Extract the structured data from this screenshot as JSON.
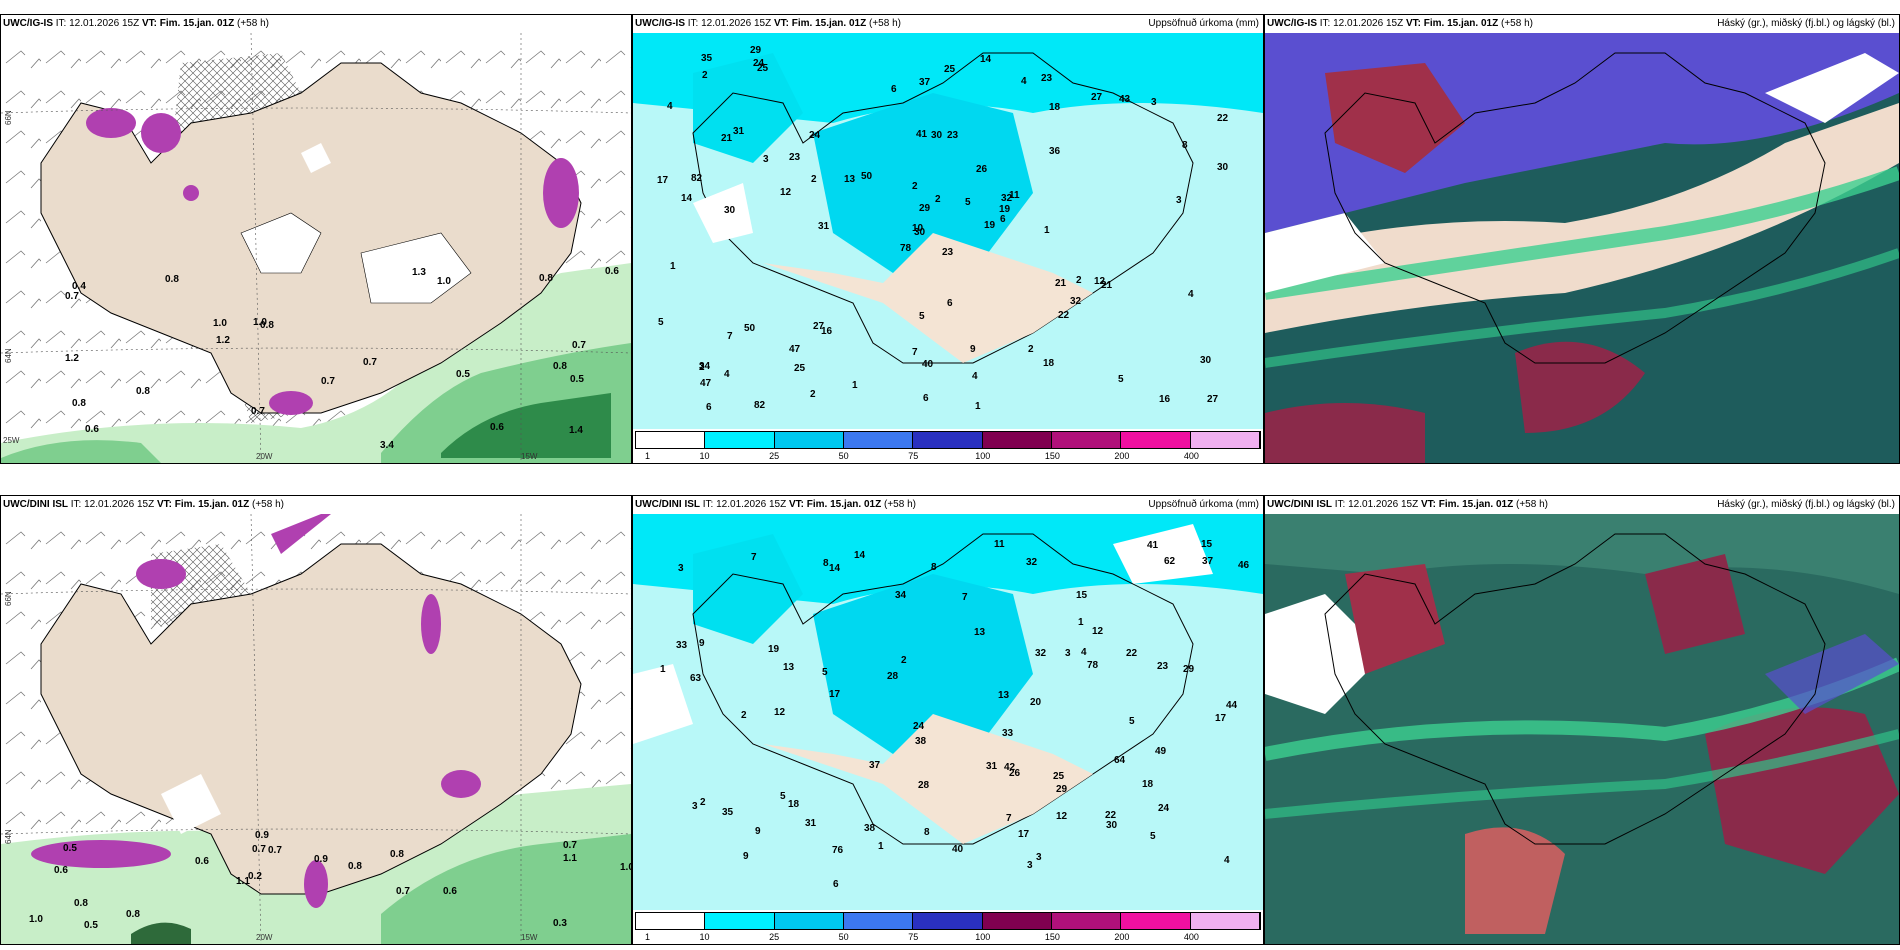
{
  "panels": {
    "top_left": {
      "model": "UWC/IG-IS",
      "it": " IT: 12.01.2026 15Z ",
      "vt_label": "VT:",
      "vt": " Fim. 15.jan. 01Z",
      "lead": " (+58 h)",
      "right": ""
    },
    "top_mid": {
      "model": "UWC/IG-IS",
      "it": " IT: 12.01.2026 15Z ",
      "vt_label": "VT:",
      "vt": " Fim. 15.jan. 01Z",
      "lead": " (+58 h)",
      "right": "Uppsöfnuð úrkoma (mm)"
    },
    "top_right": {
      "model": "UWC/IG-IS",
      "it": " IT: 12.01.2026 15Z ",
      "vt_label": "VT:",
      "vt": " Fim. 15.jan. 01Z",
      "lead": " (+58 h)",
      "right": "Háský (gr.), miðský (fj.bl.) og lágský (bl.)"
    },
    "bottom_left": {
      "model": "UWC/DINI ISL",
      "it": " IT: 12.01.2026 15Z ",
      "vt_label": "VT:",
      "vt": " Fim. 15.jan. 01Z",
      "lead": " (+58 h)",
      "right": ""
    },
    "bottom_mid": {
      "model": "UWC/DINI ISL",
      "it": " IT: 12.01.2026 15Z ",
      "vt_label": "VT:",
      "vt": " Fim. 15.jan. 01Z",
      "lead": " (+58 h)",
      "right": "Uppsöfnuð úrkoma (mm)"
    },
    "bottom_right": {
      "model": "UWC/DINI ISL",
      "it": " IT: 12.01.2026 15Z ",
      "vt_label": "VT:",
      "vt": " Fim. 15.jan. 01Z",
      "lead": " (+58 h)",
      "right": "Háský (gr.), miðský (fj.bl.) og lágský (bl.)"
    }
  },
  "axis_labels": {
    "lat66": "66N",
    "lat64": "64N",
    "lon20": "20W",
    "lon15": "15W",
    "lon25": "25W"
  },
  "colorbar": {
    "ticks": [
      "1",
      "10",
      "25",
      "50",
      "75",
      "100",
      "150",
      "200",
      "400"
    ],
    "colors": [
      "#ffffff",
      "#00f0ff",
      "#00c8f0",
      "#3c78f0",
      "#2a30c0",
      "#800050",
      "#b0107a",
      "#f010a0",
      "#f0b0f0"
    ]
  },
  "precip_values_top": [
    "23",
    "21",
    "30",
    "34",
    "32",
    "16",
    "23",
    "23",
    "18",
    "19",
    "25",
    "27",
    "30",
    "22",
    "78",
    "36",
    "82",
    "41",
    "26",
    "50",
    "50",
    "47",
    "25",
    "30",
    "11",
    "21",
    "31",
    "37",
    "14",
    "21",
    "30",
    "10",
    "7",
    "29",
    "24",
    "27",
    "27",
    "16",
    "30",
    "12",
    "14",
    "13",
    "12",
    "22",
    "2",
    "17",
    "19",
    "6",
    "40",
    "6",
    "7",
    "8",
    "4",
    "32",
    "18",
    "47",
    "24",
    "35",
    "9",
    "3",
    "25",
    "31",
    "82",
    "23",
    "43",
    "29",
    "4",
    "6",
    "2",
    "5",
    "5",
    "1",
    "2",
    "2",
    "2",
    "2",
    "3",
    "1",
    "2",
    "4",
    "5",
    "4",
    "1",
    "4",
    "6",
    "3",
    "6",
    "5",
    "1",
    "2"
  ],
  "precip_values_bottom": [
    "3",
    "14",
    "18",
    "19",
    "22",
    "17",
    "17",
    "17",
    "38",
    "31",
    "35",
    "33",
    "24",
    "42",
    "78",
    "41",
    "63",
    "62",
    "64",
    "23",
    "22",
    "26",
    "76",
    "30",
    "20",
    "12",
    "12",
    "13",
    "40",
    "34",
    "29",
    "15",
    "15",
    "38",
    "14",
    "8",
    "11",
    "9",
    "44",
    "25",
    "8",
    "13",
    "46",
    "24",
    "32",
    "49",
    "31",
    "28",
    "33",
    "37",
    "37",
    "13",
    "5",
    "1",
    "3",
    "4",
    "5",
    "2",
    "6",
    "3",
    "1",
    "3",
    "4",
    "2",
    "8",
    "9",
    "7",
    "7",
    "12",
    "28",
    "29",
    "32",
    "9",
    "7",
    "1",
    "18",
    "5",
    "5",
    "3",
    "2"
  ],
  "wind_values_top": [
    "0.5",
    "0.8",
    "0.6",
    "0.8",
    "0.8",
    "0.6",
    "0.8",
    "1.0",
    "1.0",
    "3.4",
    "0.7",
    "1.2",
    "0.4",
    "1.4",
    "0.7",
    "0.7",
    "0.7",
    "0.7",
    "1.0",
    "0.8",
    "0.6",
    "0.8",
    "1.2",
    "0.5",
    "1.3"
  ],
  "wind_values_bottom": [
    "0.3",
    "0.6",
    "0.7",
    "1.1",
    "0.8",
    "0.5",
    "0.7",
    "0.9",
    "0.8",
    "0.6",
    "1.0",
    "0.8",
    "0.7",
    "0.8",
    "0.6",
    "0.5",
    "0.9",
    "1.0",
    "0.7",
    "1.1",
    "0.2"
  ]
}
